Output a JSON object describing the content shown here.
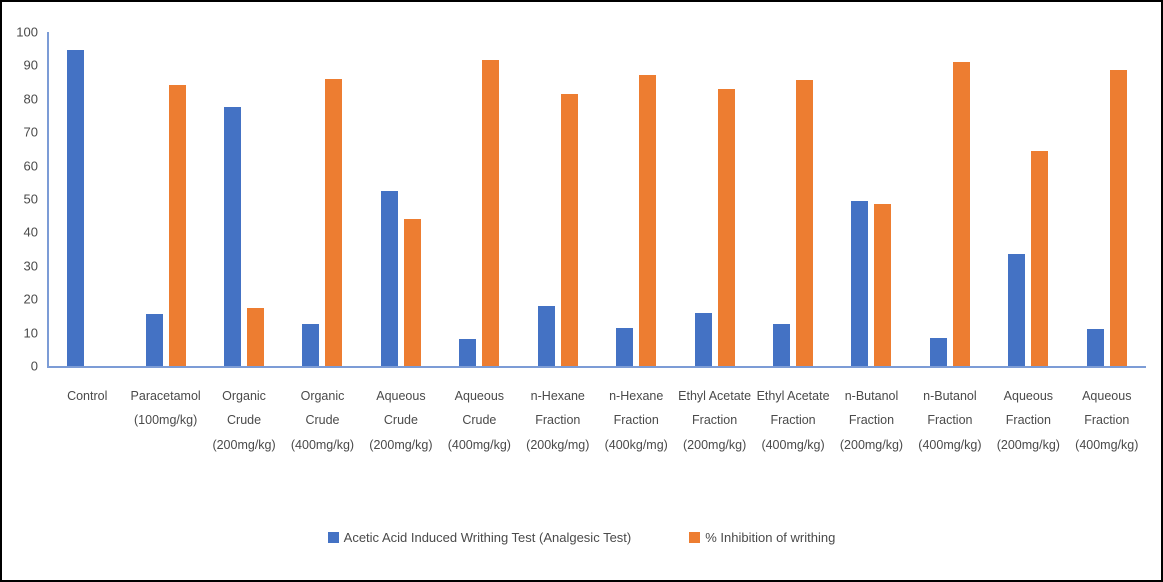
{
  "chart_data": {
    "type": "bar",
    "title": "",
    "xlabel": "",
    "ylabel": "",
    "ylim": [
      0,
      100
    ],
    "ytick_step": 10,
    "grid": false,
    "legend_position": "bottom",
    "axis_color": "#7c9cd6",
    "categories": [
      "Control",
      "Paracetamol (100mg/kg)",
      "Organic Crude (200mg/kg)",
      "Organic Crude (400mg/kg)",
      "Aqueous Crude (200mg/kg)",
      "Aqueous Crude (400mg/kg)",
      "n-Hexane Fraction (200kg/mg)",
      "n-Hexane Fraction (400kg/mg)",
      "Ethyl Acetate Fraction (200mg/kg)",
      "Ethyl Acetate Fraction (400mg/kg)",
      "n-Butanol Fraction (200mg/kg)",
      "n-Butanol Fraction (400mg/kg)",
      "Aqueous Fraction (200mg/kg)",
      "Aqueous Fraction (400mg/kg)"
    ],
    "series": [
      {
        "name": "Acetic Acid Induced Writhing Test (Analgesic Test)",
        "color": "#4472c4",
        "values": [
          94.5,
          15.5,
          77.5,
          12.5,
          52.5,
          8,
          18,
          11.5,
          16,
          12.5,
          49.5,
          8.5,
          33.5,
          11
        ]
      },
      {
        "name": "% Inhibition of writhing",
        "color": "#ed7d31",
        "values": [
          0,
          84,
          17.5,
          86,
          44,
          91.5,
          81.5,
          87,
          83,
          85.5,
          48.5,
          91,
          64.5,
          88.5
        ]
      }
    ]
  }
}
